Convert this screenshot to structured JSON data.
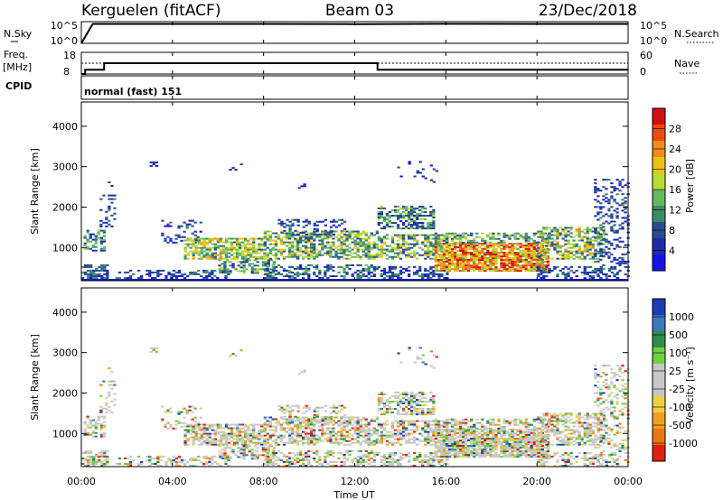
{
  "header": {
    "station": "Kerguelen (fitACF)",
    "beam": "Beam 03",
    "date": "23/Dec/2018"
  },
  "noise_panel": {
    "left_label": "N.Sky",
    "right_label": "N.Search",
    "ticks": [
      "10^5",
      "10^0"
    ]
  },
  "freq_panel": {
    "left_label_1": "Freq.",
    "left_label_2": "[MHz]",
    "right_label": "Nave",
    "left_ticks": [
      "18",
      "8"
    ],
    "right_ticks": [
      "60",
      "0"
    ]
  },
  "cpid": {
    "label": "CPID",
    "program": "normal (fast) 151"
  },
  "x_axis": {
    "title": "Time UT",
    "ticks": [
      "00:00",
      "04:00",
      "08:00",
      "12:00",
      "16:00",
      "20:00",
      "00:00"
    ]
  },
  "power_colorbar": {
    "title": "Power [dB]",
    "ticks": [
      "28",
      "24",
      "20",
      "16",
      "12",
      "8",
      "4"
    ],
    "colors": [
      "#d21010",
      "#ec4a10",
      "#f08c18",
      "#ecc214",
      "#b8dc32",
      "#64b860",
      "#3a8c64",
      "#284c90",
      "#1c2ca8",
      "#1414e6"
    ]
  },
  "velocity_colorbar": {
    "title": "Velocity [m s⁻¹]",
    "ticks": [
      "1000",
      "500",
      "100",
      "25",
      "-25",
      "-100",
      "-500",
      "-1000"
    ],
    "colors": [
      "#1e3cb4",
      "#3a78c0",
      "#2f8c4a",
      "#70d040",
      "#c8c8c8",
      "#c8c8c8",
      "#f0d040",
      "#f0a020",
      "#e87814",
      "#e02010"
    ]
  },
  "chart_data": [
    {
      "type": "line",
      "name": "noise",
      "y_scale": "log",
      "ylim": [
        1,
        100000
      ],
      "x": [
        "00:00",
        "00:30",
        "01:00",
        "04:00",
        "08:00",
        "12:00",
        "16:00",
        "20:00",
        "24:00"
      ],
      "series": [
        {
          "values": [
            0,
            30000,
            30000,
            30000,
            30000,
            28000,
            32000,
            30000,
            30000
          ]
        }
      ]
    },
    {
      "type": "line",
      "name": "frequency",
      "ylim": [
        8,
        18
      ],
      "x": [
        "00:00",
        "00:10",
        "00:40",
        "01:00",
        "13:00",
        "24:00"
      ],
      "series": [
        {
          "values": [
            8,
            10,
            10,
            13,
            10,
            10
          ]
        },
        {
          "values": [
            13,
            13,
            13,
            13,
            13,
            13
          ]
        }
      ]
    },
    {
      "type": "heatmap",
      "name": "power",
      "title": "Power [dB]",
      "xlabel": "Time UT",
      "ylabel": "Slant Range [km]",
      "xlim": [
        0,
        24
      ],
      "ylim": [
        180,
        4600
      ],
      "yticks": [
        1000,
        2000,
        3000,
        4000
      ],
      "color_range": [
        0,
        30
      ]
    },
    {
      "type": "heatmap",
      "name": "velocity",
      "title": "Velocity [m s⁻¹]",
      "xlabel": "Time UT",
      "ylabel": "Slant Range [km]",
      "xlim": [
        0,
        24
      ],
      "ylim": [
        180,
        4600
      ],
      "yticks": [
        1000,
        2000,
        3000,
        4000
      ],
      "color_range": [
        -1000,
        1000
      ]
    }
  ]
}
